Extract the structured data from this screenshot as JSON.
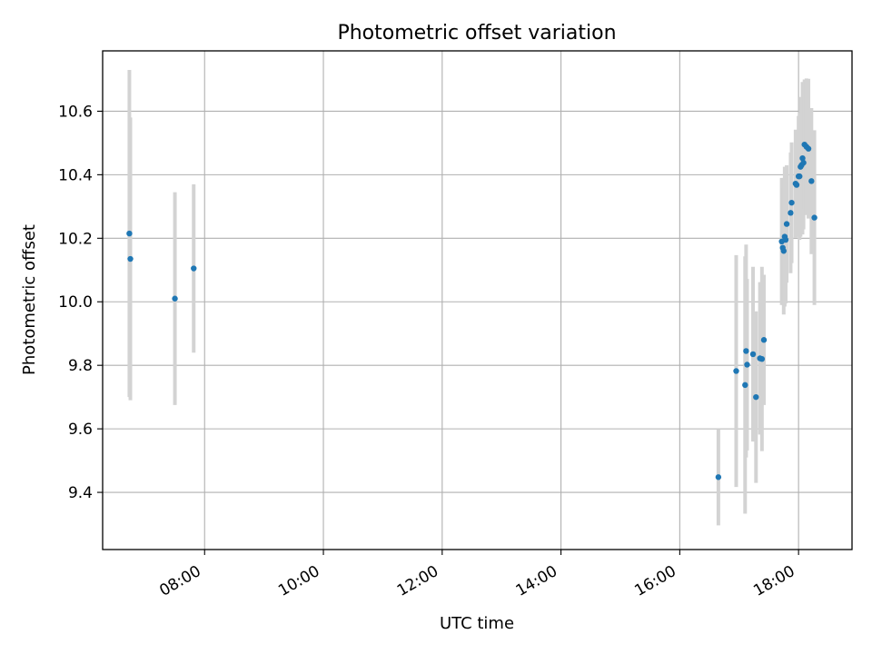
{
  "chart_data": {
    "type": "scatter",
    "title": "Photometric offset variation",
    "xlabel": "UTC time",
    "ylabel": "Photometric offset",
    "xlim": [
      "06:17",
      "18:54"
    ],
    "ylim": [
      9.22,
      10.79
    ],
    "x_ticks": [
      "08:00",
      "10:00",
      "12:00",
      "14:00",
      "16:00",
      "18:00"
    ],
    "y_ticks": [
      9.4,
      9.6,
      9.8,
      10.0,
      10.2,
      10.4,
      10.6
    ],
    "grid": true,
    "marker_color": "#1f77b4",
    "errorbar_color": "#d3d3d3",
    "points": [
      {
        "x": "06:44",
        "y": 10.215,
        "yerr": 0.515
      },
      {
        "x": "06:45",
        "y": 10.135,
        "yerr": 0.445
      },
      {
        "x": "07:30",
        "y": 10.01,
        "yerr": 0.335
      },
      {
        "x": "07:49",
        "y": 10.105,
        "yerr": 0.265
      },
      {
        "x": "16:39",
        "y": 9.448,
        "yerr": 0.152
      },
      {
        "x": "16:57",
        "y": 9.782,
        "yerr": 0.365
      },
      {
        "x": "17:06",
        "y": 9.738,
        "yerr": 0.405
      },
      {
        "x": "17:07",
        "y": 9.845,
        "yerr": 0.335
      },
      {
        "x": "17:08",
        "y": 9.802,
        "yerr": 0.27
      },
      {
        "x": "17:14",
        "y": 9.835,
        "yerr": 0.275
      },
      {
        "x": "17:17",
        "y": 9.7,
        "yerr": 0.27
      },
      {
        "x": "17:21",
        "y": 9.822,
        "yerr": 0.24
      },
      {
        "x": "17:23",
        "y": 9.82,
        "yerr": 0.29
      },
      {
        "x": "17:25",
        "y": 9.88,
        "yerr": 0.205
      },
      {
        "x": "17:43",
        "y": 10.19,
        "yerr": 0.2
      },
      {
        "x": "17:44",
        "y": 10.17,
        "yerr": 0.18
      },
      {
        "x": "17:45",
        "y": 10.16,
        "yerr": 0.2
      },
      {
        "x": "17:46",
        "y": 10.205,
        "yerr": 0.22
      },
      {
        "x": "17:47",
        "y": 10.195,
        "yerr": 0.2
      },
      {
        "x": "17:48",
        "y": 10.245,
        "yerr": 0.185
      },
      {
        "x": "17:52",
        "y": 10.28,
        "yerr": 0.19
      },
      {
        "x": "17:53",
        "y": 10.312,
        "yerr": 0.19
      },
      {
        "x": "17:57",
        "y": 10.372,
        "yerr": 0.17
      },
      {
        "x": "17:58",
        "y": 10.368,
        "yerr": 0.16
      },
      {
        "x": "18:00",
        "y": 10.395,
        "yerr": 0.19
      },
      {
        "x": "18:01",
        "y": 10.395,
        "yerr": 0.2
      },
      {
        "x": "18:02",
        "y": 10.425,
        "yerr": 0.22
      },
      {
        "x": "18:03",
        "y": 10.43,
        "yerr": 0.21
      },
      {
        "x": "18:04",
        "y": 10.452,
        "yerr": 0.24
      },
      {
        "x": "18:05",
        "y": 10.438,
        "yerr": 0.21
      },
      {
        "x": "18:06",
        "y": 10.495,
        "yerr": 0.205
      },
      {
        "x": "18:08",
        "y": 10.488,
        "yerr": 0.215
      },
      {
        "x": "18:10",
        "y": 10.482,
        "yerr": 0.22
      },
      {
        "x": "18:13",
        "y": 10.38,
        "yerr": 0.23
      },
      {
        "x": "18:16",
        "y": 10.265,
        "yerr": 0.275
      }
    ]
  }
}
